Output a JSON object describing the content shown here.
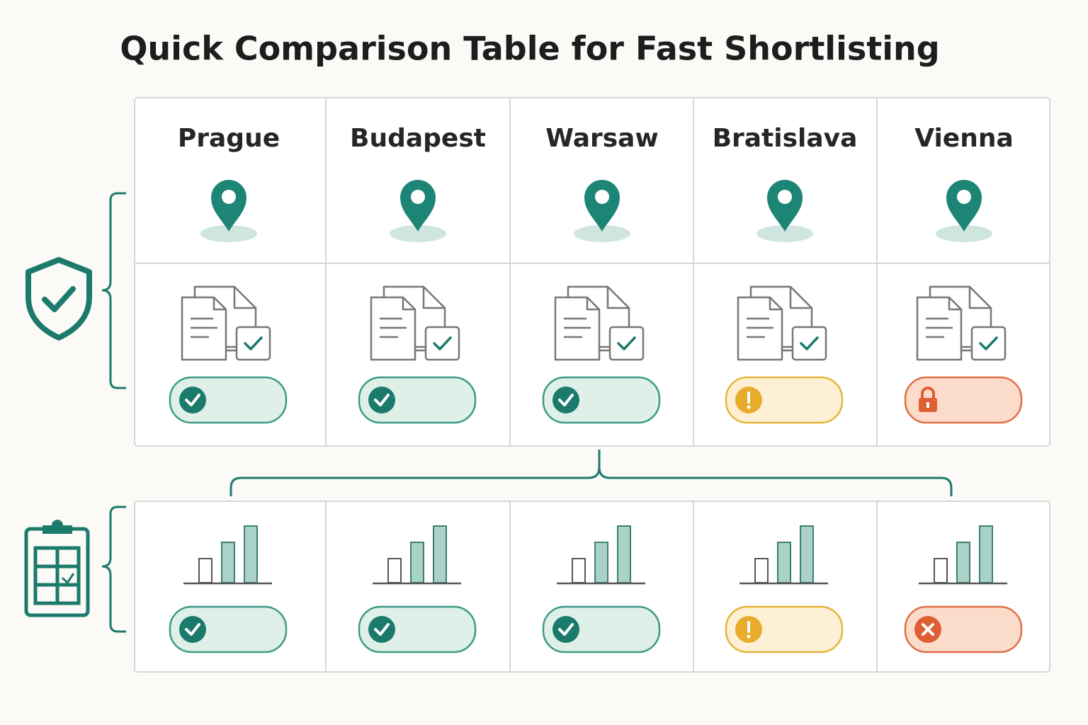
{
  "header": {
    "title": "Quick Comparison Table for Fast Shortlisting"
  },
  "table": {
    "columns": [
      "Prague",
      "Budapest",
      "Warsaw",
      "Bratislava",
      "Vienna"
    ]
  }
}
